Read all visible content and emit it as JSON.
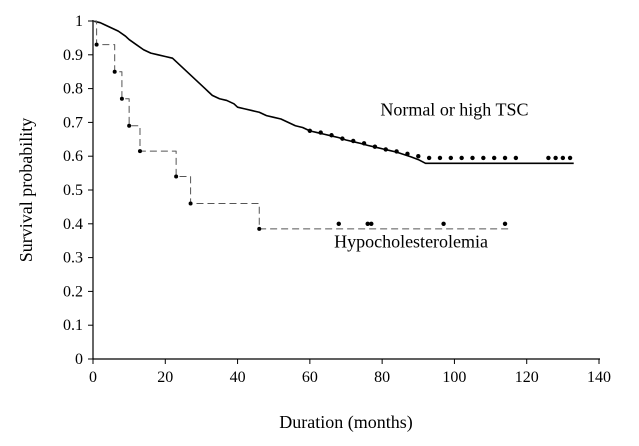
{
  "chart_data": {
    "type": "line",
    "title": "",
    "xlabel": "Duration (months)",
    "ylabel": "Survival probability",
    "xlim": [
      0,
      140
    ],
    "ylim": [
      0,
      1
    ],
    "xticks": [
      "0",
      "20",
      "40",
      "60",
      "80",
      "100",
      "120",
      "140"
    ],
    "yticks": [
      "0",
      "0.1",
      "0.2",
      "0.3",
      "0.4",
      "0.5",
      "0.6",
      "0.7",
      "0.8",
      "0.9",
      "1"
    ],
    "grid": false,
    "legend": "none",
    "series": [
      {
        "name": "Normal or high TSC",
        "line_style": "solid",
        "color": "#000000",
        "points": [
          [
            0,
            1.0
          ],
          [
            2,
            0.995
          ],
          [
            3,
            0.99
          ],
          [
            5,
            0.98
          ],
          [
            7,
            0.97
          ],
          [
            9,
            0.955
          ],
          [
            10,
            0.945
          ],
          [
            12,
            0.93
          ],
          [
            14,
            0.915
          ],
          [
            16,
            0.905
          ],
          [
            18,
            0.9
          ],
          [
            20,
            0.895
          ],
          [
            22,
            0.89
          ],
          [
            23,
            0.88
          ],
          [
            24,
            0.87
          ],
          [
            25,
            0.86
          ],
          [
            26,
            0.85
          ],
          [
            27,
            0.84
          ],
          [
            28,
            0.83
          ],
          [
            29,
            0.82
          ],
          [
            30,
            0.81
          ],
          [
            31,
            0.8
          ],
          [
            32,
            0.79
          ],
          [
            33,
            0.78
          ],
          [
            35,
            0.77
          ],
          [
            37,
            0.765
          ],
          [
            39,
            0.755
          ],
          [
            40,
            0.745
          ],
          [
            42,
            0.74
          ],
          [
            44,
            0.735
          ],
          [
            46,
            0.73
          ],
          [
            48,
            0.72
          ],
          [
            50,
            0.715
          ],
          [
            52,
            0.71
          ],
          [
            54,
            0.7
          ],
          [
            56,
            0.69
          ],
          [
            58,
            0.685
          ],
          [
            60,
            0.675
          ],
          [
            62,
            0.67
          ],
          [
            64,
            0.665
          ],
          [
            66,
            0.66
          ],
          [
            68,
            0.655
          ],
          [
            70,
            0.648
          ],
          [
            72,
            0.643
          ],
          [
            74,
            0.638
          ],
          [
            76,
            0.632
          ],
          [
            78,
            0.627
          ],
          [
            80,
            0.622
          ],
          [
            82,
            0.617
          ],
          [
            84,
            0.612
          ],
          [
            86,
            0.605
          ],
          [
            88,
            0.598
          ],
          [
            90,
            0.59
          ],
          [
            92,
            0.579
          ],
          [
            133,
            0.579
          ]
        ],
        "censored": [
          [
            60,
            0.675
          ],
          [
            63,
            0.67
          ],
          [
            66,
            0.662
          ],
          [
            69,
            0.652
          ],
          [
            72,
            0.645
          ],
          [
            75,
            0.638
          ],
          [
            78,
            0.628
          ],
          [
            81,
            0.62
          ],
          [
            84,
            0.614
          ],
          [
            87,
            0.607
          ],
          [
            90,
            0.6
          ],
          [
            93,
            0.595
          ],
          [
            96,
            0.595
          ],
          [
            99,
            0.595
          ],
          [
            102,
            0.595
          ],
          [
            105,
            0.595
          ],
          [
            108,
            0.595
          ],
          [
            111,
            0.595
          ],
          [
            114,
            0.595
          ],
          [
            117,
            0.595
          ],
          [
            126,
            0.595
          ],
          [
            128,
            0.595
          ],
          [
            130,
            0.595
          ],
          [
            132,
            0.595
          ]
        ]
      },
      {
        "name": "Hypocholesterolemia",
        "line_style": "dashed",
        "color": "#555555",
        "points": [
          [
            0,
            1.0
          ],
          [
            1,
            1.0
          ],
          [
            1,
            0.93
          ],
          [
            6,
            0.93
          ],
          [
            6,
            0.85
          ],
          [
            8,
            0.85
          ],
          [
            8,
            0.77
          ],
          [
            10,
            0.77
          ],
          [
            10,
            0.69
          ],
          [
            13,
            0.69
          ],
          [
            13,
            0.615
          ],
          [
            20,
            0.615
          ],
          [
            23,
            0.615
          ],
          [
            23,
            0.54
          ],
          [
            27,
            0.54
          ],
          [
            27,
            0.46
          ],
          [
            46,
            0.46
          ],
          [
            46,
            0.385
          ],
          [
            115,
            0.385
          ]
        ],
        "events": [
          [
            1,
            0.93
          ],
          [
            6,
            0.85
          ],
          [
            8,
            0.77
          ],
          [
            10,
            0.69
          ],
          [
            13,
            0.615
          ],
          [
            23,
            0.54
          ],
          [
            27,
            0.46
          ],
          [
            46,
            0.385
          ]
        ],
        "censored": [
          [
            68,
            0.4
          ],
          [
            76,
            0.4
          ],
          [
            77,
            0.4
          ],
          [
            97,
            0.4
          ],
          [
            114,
            0.4
          ]
        ]
      }
    ],
    "annotations": [
      {
        "text": "Normal or high TSC",
        "x": 100,
        "y": 0.72
      },
      {
        "text": "Hypocholesterolemia",
        "x": 88,
        "y": 0.33
      }
    ]
  }
}
